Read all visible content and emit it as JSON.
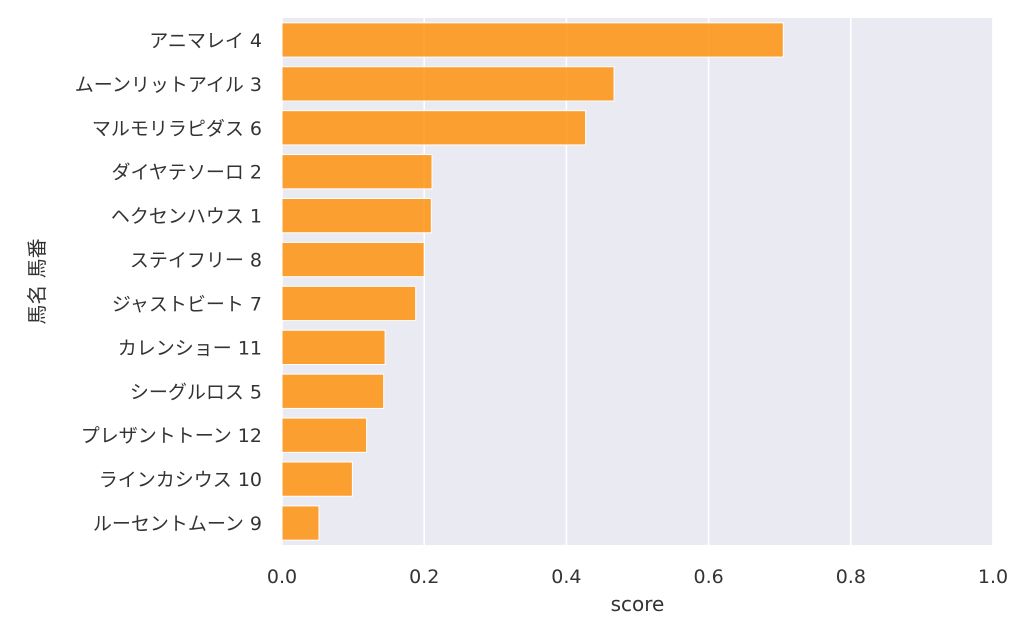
{
  "chart_data": {
    "type": "bar",
    "orientation": "horizontal",
    "xlabel": "score",
    "ylabel": "馬名 馬番",
    "xlim": [
      0.0,
      1.0
    ],
    "x_ticks": [
      "0.0",
      "0.2",
      "0.4",
      "0.6",
      "0.8",
      "1.0"
    ],
    "grid": true,
    "bar_color": "#ff8c00",
    "background_color": "#eaeaf2",
    "categories": [
      "アニマレイ 4",
      "ムーンリットアイル 3",
      "マルモリラピダス 6",
      "ダイヤテソーロ 2",
      "ヘクセンハウス 1",
      "ステイフリー 8",
      "ジャストビート 7",
      "カレンショー 11",
      "シーグルロス 5",
      "プレザントトーン 12",
      "ラインカシウス 10",
      "ルーセントムーン 9"
    ],
    "values": [
      0.705,
      0.467,
      0.427,
      0.211,
      0.21,
      0.2,
      0.188,
      0.145,
      0.143,
      0.119,
      0.099,
      0.052
    ]
  }
}
